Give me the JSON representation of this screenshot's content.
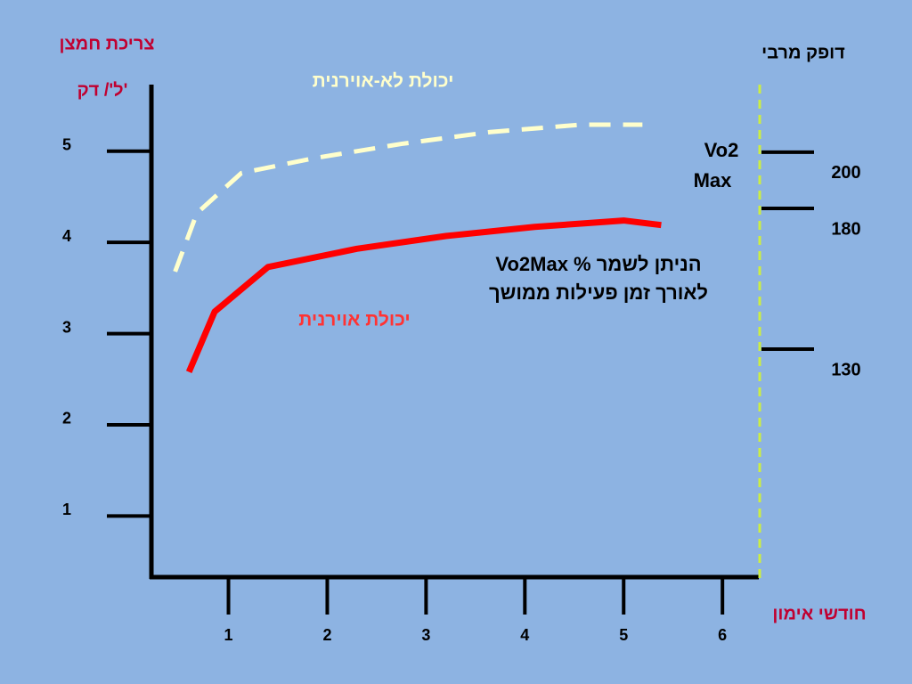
{
  "chart_data": {
    "type": "line",
    "y_title": "צריכת חמצן",
    "y_unit": "ל'/ דק'",
    "y2_title": "דופק מרבי",
    "x_title": "חודשי אימון",
    "annotations": [
      "Vo2",
      "Max",
      "Vo2Max % הניתן לשמר",
      "לאורך זמן פעילות ממושך"
    ],
    "xlim": [
      0.22,
      6.35
    ],
    "xticks": [
      1,
      2,
      3,
      4,
      5,
      6
    ],
    "ylim": [
      0.33,
      5.73
    ],
    "yticks": [
      1,
      2,
      3,
      4,
      5
    ],
    "y2lim": [
      49,
      224
    ],
    "y2ticks": [
      130,
      180,
      200
    ],
    "series": [
      {
        "name": "יכולת לא-אוירנית",
        "color": "#ffffcc",
        "dashed": true,
        "x": [
          0.46,
          0.68,
          1.13,
          1.85,
          2.75,
          3.65,
          4.56,
          5.19
        ],
        "values": [
          3.68,
          4.32,
          4.76,
          4.92,
          5.08,
          5.21,
          5.29,
          5.29
        ]
      },
      {
        "name": "יכולת אוירנית",
        "color": "#ff0000",
        "dashed": false,
        "x": [
          0.6,
          0.86,
          1.4,
          2.3,
          3.2,
          4.1,
          5.0,
          5.38
        ],
        "values": [
          2.58,
          3.24,
          3.73,
          3.93,
          4.07,
          4.17,
          4.24,
          4.19
        ]
      }
    ]
  }
}
